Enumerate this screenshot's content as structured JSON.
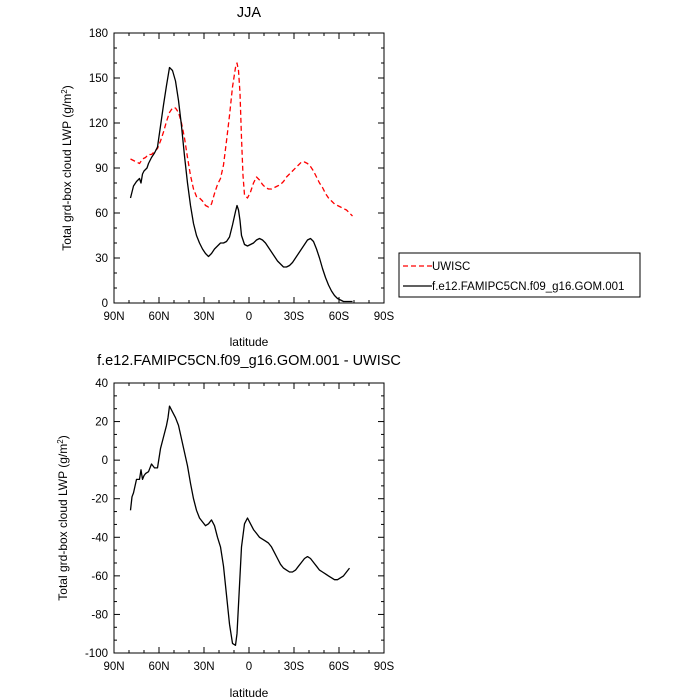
{
  "chart_data": [
    {
      "type": "line",
      "title": "JJA",
      "xlabel": "latitude",
      "ylabel": "Total grd-box cloud LWP (g/m²)",
      "x_ticks": [
        "90N",
        "60N",
        "30N",
        "0",
        "30S",
        "60S",
        "90S"
      ],
      "y_ticks": [
        "0",
        "30",
        "60",
        "90",
        "120",
        "150",
        "180"
      ],
      "xlim": [
        90,
        -90
      ],
      "ylim": [
        0,
        180
      ],
      "legend_position": "right-outside",
      "series": [
        {
          "name": "UWISC",
          "color": "#ff0000",
          "dash": "dashed",
          "x": [
            79,
            77,
            75,
            73,
            71,
            69,
            67,
            65,
            63,
            61,
            59,
            57,
            55,
            53,
            51,
            49,
            47,
            45,
            43,
            41,
            39,
            37,
            35,
            33,
            31,
            29,
            27,
            25,
            23,
            21,
            19,
            17,
            15,
            13,
            11,
            9,
            8,
            7,
            6,
            5,
            4,
            3,
            1,
            -1,
            -3,
            -5,
            -7,
            -9,
            -11,
            -13,
            -15,
            -17,
            -19,
            -21,
            -23,
            -25,
            -27,
            -29,
            -31,
            -33,
            -35,
            -37,
            -39,
            -41,
            -43,
            -45,
            -47,
            -49,
            -51,
            -53,
            -55,
            -57,
            -59,
            -61,
            -63,
            -65,
            -67,
            -69
          ],
          "values": [
            96,
            95,
            94,
            93,
            96,
            97,
            99,
            99,
            101,
            103,
            108,
            114,
            121,
            127,
            130,
            130,
            127,
            120,
            110,
            97,
            85,
            76,
            71,
            70,
            68,
            65,
            64,
            66,
            73,
            79,
            83,
            92,
            108,
            125,
            144,
            157,
            160,
            155,
            140,
            110,
            85,
            72,
            70,
            74,
            80,
            84,
            82,
            79,
            77,
            76,
            76,
            77,
            78,
            79,
            81,
            84,
            86,
            88,
            90,
            92,
            94,
            94,
            93,
            91,
            88,
            84,
            80,
            77,
            73,
            70,
            68,
            66,
            65,
            64,
            63,
            62,
            60,
            58
          ]
        },
        {
          "name": "f.e12.FAMIPC5CN.f09_g16.GOM.001",
          "color": "#000000",
          "dash": "solid",
          "x": [
            79,
            78,
            77,
            75,
            73,
            72,
            71,
            70,
            69,
            68,
            67,
            65,
            63,
            61,
            59,
            57,
            55,
            54,
            53,
            51,
            49,
            47,
            45,
            43,
            41,
            39,
            37,
            35,
            33,
            31,
            29,
            27,
            25,
            23,
            21,
            19,
            17,
            15,
            13,
            11,
            9,
            8,
            7,
            6,
            5,
            3,
            1,
            -1,
            -3,
            -5,
            -7,
            -9,
            -11,
            -13,
            -15,
            -17,
            -19,
            -21,
            -23,
            -25,
            -27,
            -29,
            -31,
            -33,
            -35,
            -37,
            -39,
            -41,
            -43,
            -45,
            -47,
            -49,
            -51,
            -53,
            -55,
            -57,
            -59,
            -61,
            -63,
            -65,
            -67,
            -69
          ],
          "values": [
            70,
            74,
            78,
            81,
            83,
            80,
            86,
            88,
            89,
            90,
            93,
            97,
            100,
            104,
            118,
            132,
            145,
            151,
            157,
            155,
            148,
            135,
            118,
            98,
            80,
            65,
            53,
            45,
            40,
            36,
            33,
            31,
            33,
            36,
            38,
            40,
            40,
            41,
            44,
            52,
            61,
            65,
            62,
            55,
            45,
            39,
            38,
            39,
            40,
            42,
            43,
            42,
            40,
            37,
            34,
            31,
            28,
            26,
            24,
            24,
            25,
            27,
            30,
            33,
            36,
            39,
            42,
            43,
            41,
            36,
            30,
            23,
            17,
            12,
            8,
            5,
            3,
            2,
            1,
            1,
            1,
            1
          ]
        }
      ]
    },
    {
      "type": "line",
      "title": "f.e12.FAMIPC5CN.f09_g16.GOM.001 - UWISC",
      "xlabel": "latitude",
      "ylabel": "Total grd-box cloud LWP (g/m²)",
      "x_ticks": [
        "90N",
        "60N",
        "30N",
        "0",
        "30S",
        "60S",
        "90S"
      ],
      "y_ticks": [
        "-100",
        "-80",
        "-60",
        "-40",
        "-20",
        "0",
        "20",
        "40"
      ],
      "xlim": [
        90,
        -90
      ],
      "ylim": [
        -100,
        40
      ],
      "series": [
        {
          "color": "#000000",
          "dash": "solid",
          "x": [
            79,
            78,
            77,
            75,
            73,
            72,
            71,
            70,
            69,
            67,
            65,
            63,
            61,
            59,
            57,
            55,
            54,
            53,
            51,
            49,
            47,
            45,
            43,
            41,
            39,
            37,
            35,
            33,
            31,
            29,
            27,
            25,
            23,
            21,
            19,
            17,
            15,
            13,
            11,
            9,
            8,
            7,
            6,
            5,
            3,
            1,
            -1,
            -3,
            -5,
            -7,
            -9,
            -11,
            -13,
            -15,
            -17,
            -19,
            -21,
            -23,
            -25,
            -27,
            -29,
            -31,
            -33,
            -35,
            -37,
            -39,
            -41,
            -43,
            -45,
            -47,
            -49,
            -51,
            -53,
            -55,
            -57,
            -59,
            -61,
            -63,
            -65,
            -67
          ],
          "values": [
            -26,
            -19,
            -17,
            -10,
            -10,
            -5,
            -10,
            -8,
            -7,
            -6,
            -2,
            -4,
            -4,
            6,
            12,
            18,
            22,
            28,
            25,
            22,
            18,
            11,
            4,
            -3,
            -12,
            -20,
            -26,
            -30,
            -32,
            -34,
            -33,
            -31,
            -34,
            -40,
            -45,
            -55,
            -70,
            -85,
            -95,
            -96,
            -90,
            -75,
            -60,
            -45,
            -33,
            -30,
            -33,
            -36,
            -38,
            -40,
            -41,
            -42,
            -43,
            -45,
            -48,
            -51,
            -54,
            -56,
            -57,
            -58,
            -58,
            -57,
            -55,
            -53,
            -51,
            -50,
            -51,
            -53,
            -55,
            -57,
            -58,
            -59,
            -60,
            -61,
            -62,
            -62,
            -61,
            -60,
            -58,
            -56
          ]
        }
      ]
    }
  ]
}
